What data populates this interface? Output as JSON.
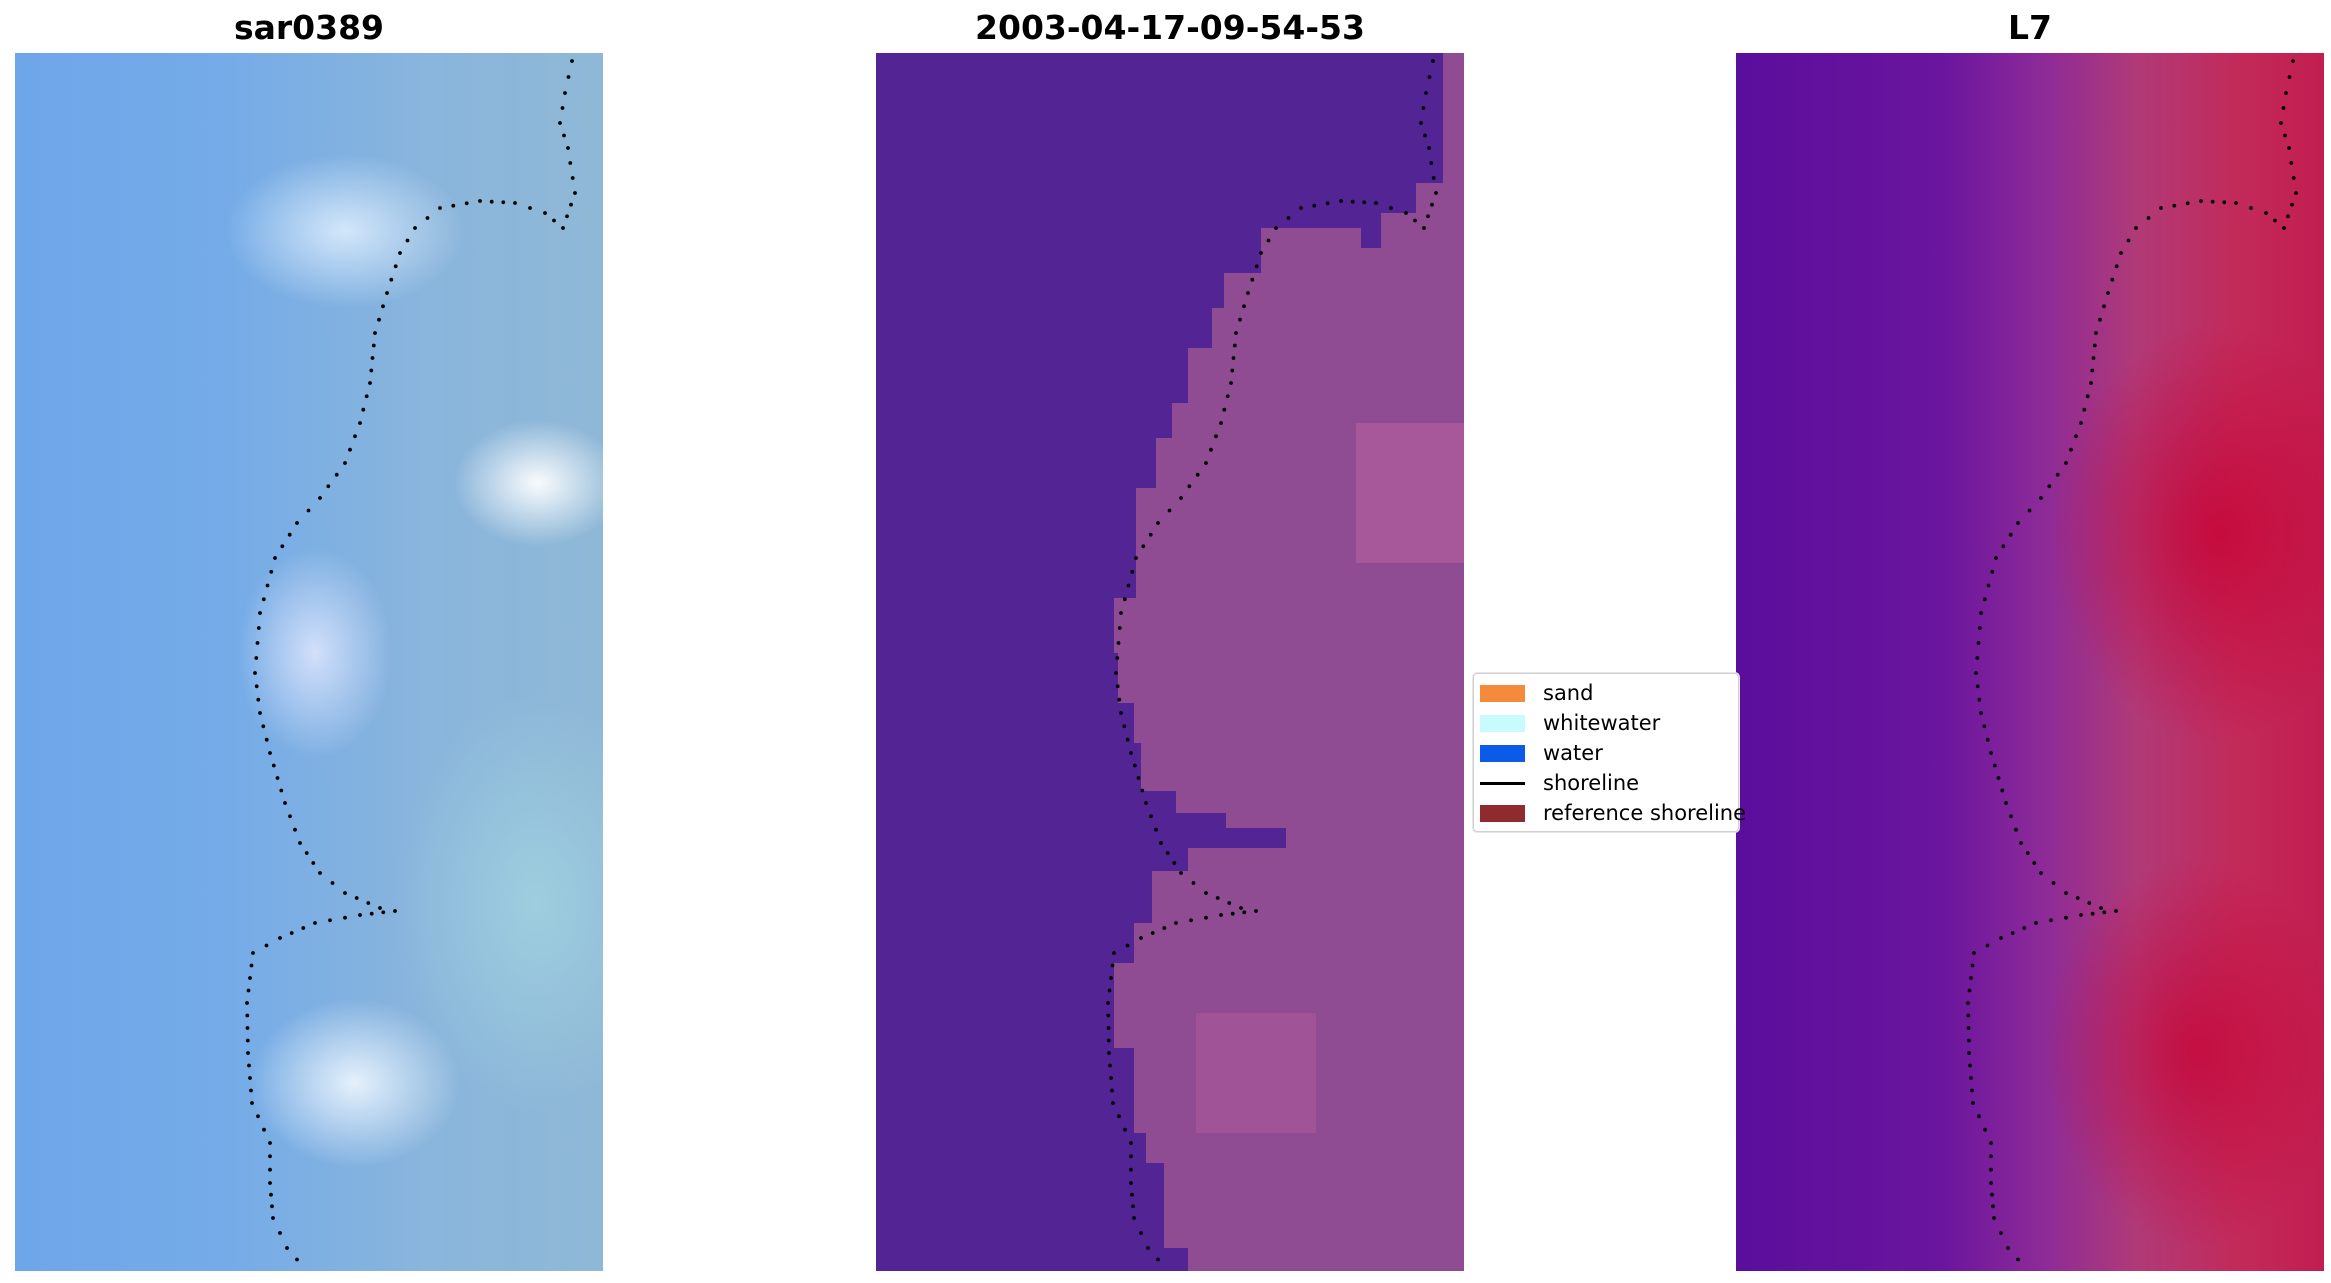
{
  "panels": [
    {
      "title": "sar0389"
    },
    {
      "title": "2003-04-17-09-54-53"
    },
    {
      "title": "L7"
    }
  ],
  "legend": {
    "items": [
      {
        "label": "sand",
        "color": "#f58a3d",
        "kind": "patch"
      },
      {
        "label": "whitewater",
        "color": "#c8fbfb",
        "kind": "patch"
      },
      {
        "label": "water",
        "color": "#0b5ae8",
        "kind": "patch"
      },
      {
        "label": "shoreline",
        "color": "#000000",
        "kind": "line"
      },
      {
        "label": "reference shoreline",
        "color": "#8f2a2f",
        "kind": "patch"
      }
    ]
  },
  "colors": {
    "panel2_water": "#532494",
    "panel2_land": "#8f4c93",
    "shoreline_points": "#000000"
  }
}
